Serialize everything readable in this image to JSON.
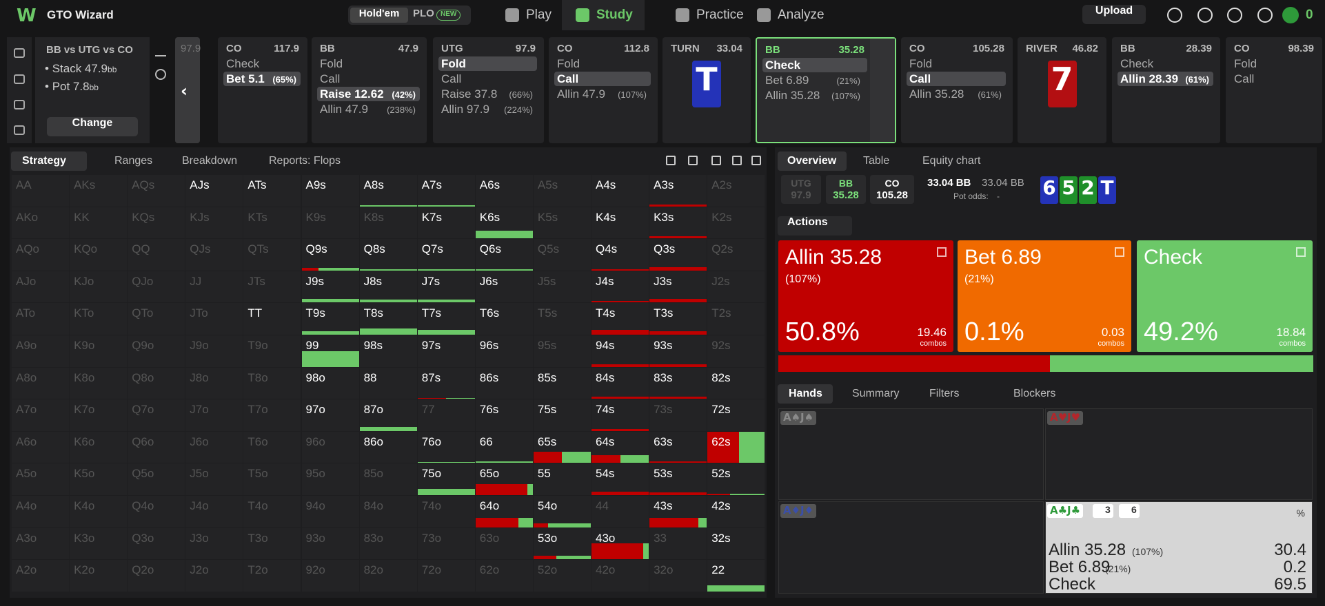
{
  "nav": {
    "logo": "GTO Wizard",
    "modes": [
      "Hold'em",
      "PLO"
    ],
    "badge": "NEW",
    "tabs": [
      "Play",
      "Study",
      "Practice",
      "Analyze"
    ],
    "upload": "Upload",
    "balance": "0"
  },
  "spot": {
    "title": "BB vs UTG vs CO",
    "stack": "Stack 47.9",
    "stack_unit": "bb",
    "pot": "Pot 7.8",
    "pot_unit": "bb",
    "change": "Change"
  },
  "line": [
    {
      "amount": 97.9
    },
    {
      "position": "CO",
      "amount": 117.9,
      "actions": [
        {
          "label": "Check"
        },
        {
          "label": "Bet 5.1",
          "size": "(65%)",
          "selected": true
        }
      ]
    },
    {
      "position": "BB",
      "amount": 47.9,
      "actions": [
        {
          "label": "Fold"
        },
        {
          "label": "Call"
        },
        {
          "label": "Raise 12.62",
          "size": "(42%)",
          "selected": true
        },
        {
          "label": "Allin 47.9",
          "size": "(238%)"
        }
      ]
    },
    {
      "position": "UTG",
      "amount": 97.9,
      "actions": [
        {
          "label": "Fold",
          "selected": true
        },
        {
          "label": "Call"
        },
        {
          "label": "Raise 37.8",
          "size": "(66%)"
        },
        {
          "label": "Allin 97.9",
          "size": "(224%)"
        }
      ]
    },
    {
      "position": "CO",
      "amount": 112.8,
      "actions": [
        {
          "label": "Fold"
        },
        {
          "label": "Call",
          "selected": true
        },
        {
          "label": "Allin 47.9",
          "size": "(107%)"
        }
      ]
    },
    {
      "street": "TURN",
      "amount": 33.04,
      "card": "T",
      "color": "#2433b8"
    },
    {
      "position": "BB",
      "amount": 35.28,
      "current": true,
      "actions": [
        {
          "label": "Check",
          "selected": true
        },
        {
          "label": "Bet 6.89",
          "size": "(21%)"
        },
        {
          "label": "Allin 35.28",
          "size": "(107%)"
        }
      ]
    },
    {
      "position": "CO",
      "amount": 105.28,
      "actions": [
        {
          "label": "Fold"
        },
        {
          "label": "Call",
          "selected": true
        },
        {
          "label": "Allin 35.28",
          "size": "(61%)"
        }
      ]
    },
    {
      "street": "RIVER",
      "amount": 46.82,
      "card": "7",
      "color": "#b30f12"
    },
    {
      "position": "BB",
      "amount": 28.39,
      "actions": [
        {
          "label": "Check"
        },
        {
          "label": "Allin 28.39",
          "size": "(61%)",
          "selected": true
        }
      ]
    },
    {
      "position": "CO",
      "amount": 98.39,
      "actions": [
        {
          "label": "Fold"
        },
        {
          "label": "Call"
        }
      ]
    }
  ],
  "strategy_tabs": [
    "Strategy",
    "Ranges",
    "Breakdown",
    "Reports: Flops"
  ],
  "grid": {
    "rows": [
      [
        "AA",
        "AKs",
        "AQs",
        "AJs",
        "ATs",
        "A9s",
        "A8s",
        "A7s",
        "A6s",
        "A5s",
        "A4s",
        "A3s",
        "A2s"
      ],
      [
        "AKo",
        "KK",
        "KQs",
        "KJs",
        "KTs",
        "K9s",
        "K8s",
        "K7s",
        "K6s",
        "K5s",
        "K4s",
        "K3s",
        "K2s"
      ],
      [
        "AQo",
        "KQo",
        "QQ",
        "QJs",
        "QTs",
        "Q9s",
        "Q8s",
        "Q7s",
        "Q6s",
        "Q5s",
        "Q4s",
        "Q3s",
        "Q2s"
      ],
      [
        "AJo",
        "KJo",
        "QJo",
        "JJ",
        "JTs",
        "J9s",
        "J8s",
        "J7s",
        "J6s",
        "J5s",
        "J4s",
        "J3s",
        "J2s"
      ],
      [
        "ATo",
        "KTo",
        "QTo",
        "JTo",
        "TT",
        "T9s",
        "T8s",
        "T7s",
        "T6s",
        "T5s",
        "T4s",
        "T3s",
        "T2s"
      ],
      [
        "A9o",
        "K9o",
        "Q9o",
        "J9o",
        "T9o",
        "99",
        "98s",
        "97s",
        "96s",
        "95s",
        "94s",
        "93s",
        "92s"
      ],
      [
        "A8o",
        "K8o",
        "Q8o",
        "J8o",
        "T8o",
        "98o",
        "88",
        "87s",
        "86s",
        "85s",
        "84s",
        "83s",
        "82s"
      ],
      [
        "A7o",
        "K7o",
        "Q7o",
        "J7o",
        "T7o",
        "97o",
        "87o",
        "77",
        "76s",
        "75s",
        "74s",
        "73s",
        "72s"
      ],
      [
        "A6o",
        "K6o",
        "Q6o",
        "J6o",
        "T6o",
        "96o",
        "86o",
        "76o",
        "66",
        "65s",
        "64s",
        "63s",
        "62s"
      ],
      [
        "A5o",
        "K5o",
        "Q5o",
        "J5o",
        "T5o",
        "95o",
        "85o",
        "75o",
        "65o",
        "55",
        "54s",
        "53s",
        "52s"
      ],
      [
        "A4o",
        "K4o",
        "Q4o",
        "J4o",
        "T4o",
        "94o",
        "84o",
        "74o",
        "64o",
        "54o",
        "44",
        "43s",
        "42s"
      ],
      [
        "A3o",
        "K3o",
        "Q3o",
        "J3o",
        "T3o",
        "93o",
        "83o",
        "73o",
        "63o",
        "53o",
        "43o",
        "33",
        "32s"
      ],
      [
        "A2o",
        "K2o",
        "Q2o",
        "J2o",
        "T2o",
        "92o",
        "82o",
        "72o",
        "62o",
        "52o",
        "42o",
        "32o",
        "22"
      ]
    ],
    "active": [
      [
        0,
        0,
        0,
        1,
        1,
        1,
        1,
        1,
        1,
        0,
        1,
        1,
        0
      ],
      [
        0,
        0,
        0,
        0,
        0,
        0,
        0,
        1,
        1,
        0,
        1,
        1,
        0
      ],
      [
        0,
        0,
        0,
        0,
        0,
        1,
        1,
        1,
        1,
        0,
        1,
        1,
        0
      ],
      [
        0,
        0,
        0,
        0,
        0,
        1,
        1,
        1,
        1,
        0,
        1,
        1,
        0
      ],
      [
        0,
        0,
        0,
        0,
        1,
        1,
        1,
        1,
        1,
        0,
        1,
        1,
        0
      ],
      [
        0,
        0,
        0,
        0,
        0,
        1,
        1,
        1,
        1,
        0,
        1,
        1,
        0
      ],
      [
        0,
        0,
        0,
        0,
        0,
        1,
        1,
        1,
        1,
        1,
        1,
        1,
        1
      ],
      [
        0,
        0,
        0,
        0,
        0,
        1,
        1,
        0,
        1,
        1,
        1,
        0,
        1
      ],
      [
        0,
        0,
        0,
        0,
        0,
        0,
        1,
        1,
        1,
        1,
        1,
        1,
        1
      ],
      [
        0,
        0,
        0,
        0,
        0,
        0,
        0,
        1,
        1,
        1,
        1,
        1,
        1
      ],
      [
        0,
        0,
        0,
        0,
        0,
        0,
        0,
        0,
        1,
        1,
        0,
        1,
        1
      ],
      [
        0,
        0,
        0,
        0,
        0,
        0,
        0,
        0,
        0,
        1,
        1,
        0,
        1
      ],
      [
        0,
        0,
        0,
        0,
        0,
        0,
        0,
        0,
        0,
        0,
        0,
        0,
        1
      ]
    ],
    "strategy": {
      "A8s": {
        "weight": 3,
        "allin": 0
      },
      "A7s": {
        "weight": 3,
        "allin": 0
      },
      "A3s": {
        "weight": 5,
        "allin": 100
      },
      "K6s": {
        "weight": 25,
        "allin": 0
      },
      "K3s": {
        "weight": 6,
        "allin": 100
      },
      "Q9s": {
        "weight": 8,
        "allin": 30
      },
      "Q8s": {
        "weight": 3,
        "allin": 0
      },
      "Q7s": {
        "weight": 3,
        "allin": 0
      },
      "Q6s": {
        "weight": 3,
        "allin": 0
      },
      "Q4s": {
        "weight": 3,
        "allin": 100
      },
      "Q3s": {
        "weight": 10,
        "allin": 100
      },
      "J9s": {
        "weight": 12,
        "allin": 0
      },
      "J8s": {
        "weight": 10,
        "allin": 0
      },
      "J7s": {
        "weight": 10,
        "allin": 0
      },
      "J4s": {
        "weight": 6,
        "allin": 100
      },
      "J3s": {
        "weight": 12,
        "allin": 100
      },
      "T9s": {
        "weight": 10,
        "allin": 0
      },
      "T8s": {
        "weight": 20,
        "allin": 0
      },
      "T7s": {
        "weight": 15,
        "allin": 0
      },
      "T4s": {
        "weight": 15,
        "allin": 100
      },
      "T3s": {
        "weight": 10,
        "allin": 100
      },
      "99": {
        "weight": 50,
        "allin": 0
      },
      "94s": {
        "weight": 8,
        "allin": 100
      },
      "93s": {
        "weight": 8,
        "allin": 100
      },
      "87s": {
        "weight": 3,
        "allin": 50
      },
      "84s": {
        "weight": 6,
        "allin": 100
      },
      "83s": {
        "weight": 6,
        "allin": 100
      },
      "87o": {
        "weight": 12,
        "allin": 0
      },
      "74s": {
        "weight": 6,
        "allin": 100
      },
      "76o": {
        "weight": 3,
        "allin": 0
      },
      "66": {
        "weight": 5,
        "allin": 0
      },
      "65s": {
        "weight": 35,
        "allin": 50
      },
      "64s": {
        "weight": 25,
        "allin": 50
      },
      "63s": {
        "weight": 6,
        "allin": 100
      },
      "62s": {
        "weight": 100,
        "allin": 55
      },
      "75o": {
        "weight": 20,
        "allin": 0
      },
      "65o": {
        "weight": 35,
        "allin": 90
      },
      "54s": {
        "weight": 12,
        "allin": 100
      },
      "53s": {
        "weight": 8,
        "allin": 100
      },
      "52s": {
        "weight": 5,
        "allin": 40
      },
      "64o": {
        "weight": 30,
        "allin": 75
      },
      "54o": {
        "weight": 12,
        "allin": 25
      },
      "43s": {
        "weight": 30,
        "allin": 85
      },
      "53o": {
        "weight": 12,
        "allin": 40
      },
      "43o": {
        "weight": 50,
        "allin": 90
      },
      "22": {
        "weight": 20,
        "allin": 0
      }
    }
  },
  "overview_tabs": [
    "Overview",
    "Table",
    "Equity chart"
  ],
  "players": [
    {
      "position": "UTG",
      "stack": 97.9,
      "folded": true
    },
    {
      "position": "BB",
      "stack": 35.28,
      "current": true
    },
    {
      "position": "CO",
      "stack": 105.28
    }
  ],
  "pot": "33.04 BB",
  "pot_total": "33.04 BB",
  "pot_odds_label": "Pot odds:",
  "pot_odds": "-",
  "board": [
    {
      "rank": "6",
      "color": "#2433b8"
    },
    {
      "rank": "5",
      "color": "#1f8f2a"
    },
    {
      "rank": "2",
      "color": "#1f8f2a"
    },
    {
      "rank": "T",
      "color": "#2433b8"
    }
  ],
  "actions_menu": "Actions",
  "actions": [
    {
      "label": "Allin 35.28",
      "size": "(107%)",
      "frequency": 50.8,
      "frequency_label": "50.8%",
      "combos": 19.46,
      "combos_unit": "combos",
      "color": "#c00000"
    },
    {
      "label": "Bet 6.89",
      "size": "(21%)",
      "frequency": 0.1,
      "frequency_label": "0.1%",
      "combos": 0.03,
      "combos_unit": "combos",
      "color": "#f06a00"
    },
    {
      "label": "Check",
      "frequency": 49.2,
      "frequency_label": "49.2%",
      "combos": 18.84,
      "combos_unit": "combos",
      "color": "#6cc868"
    }
  ],
  "hand_tabs": [
    "Hands",
    "Summary",
    "Filters",
    "Blockers"
  ],
  "hands": [
    {
      "combo": "A♠J♠",
      "color": "#8a8a8a"
    },
    {
      "combo": "A♥J♥",
      "color": "#b3262b"
    },
    {
      "combo": "A♦J♦",
      "color": "#3b4fa8"
    },
    {
      "combo": "A♣J♣",
      "color": "#2e9a3a",
      "badges": [
        3,
        6
      ],
      "percent_label": "%",
      "rows": [
        {
          "label": "Allin 35.28",
          "size": "(107%)",
          "value": 30.4
        },
        {
          "label": "Bet 6.89",
          "size": "(21%)",
          "value": 0.2
        },
        {
          "label": "Check",
          "value": 69.5
        }
      ]
    }
  ]
}
